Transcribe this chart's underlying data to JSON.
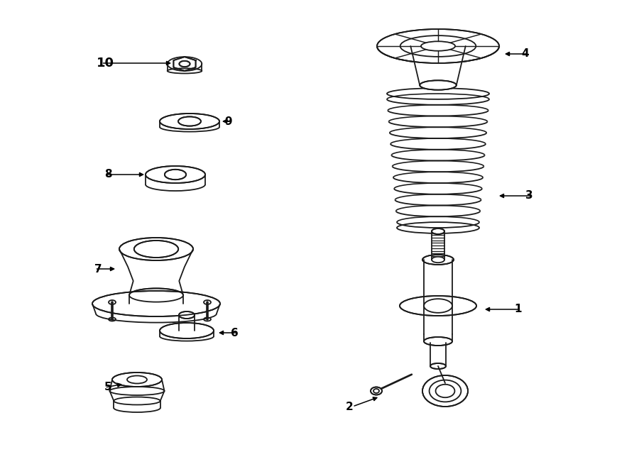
{
  "bg_color": "#ffffff",
  "lc": "#1a1a1a",
  "lw": 1.3,
  "fig_w": 9.0,
  "fig_h": 6.61,
  "dpi": 100
}
